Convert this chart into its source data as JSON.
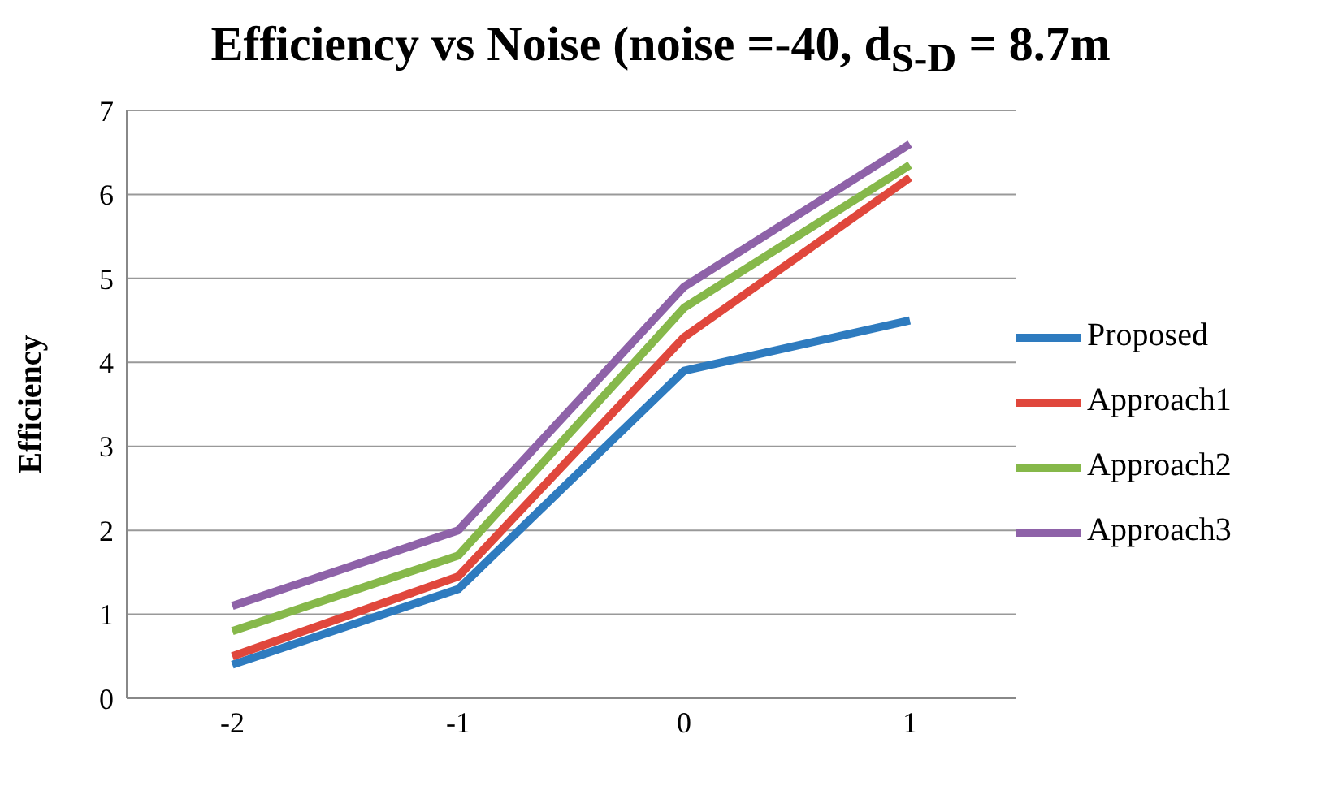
{
  "chart_data": {
    "type": "line",
    "title": "Efficiency vs Noise (noise =-40, d$_{S-D}$ = 8.7m",
    "ylabel": "Efficiency",
    "categories": [
      "-2",
      "-1",
      "0",
      "1"
    ],
    "series": [
      {
        "name": "Proposed",
        "color": "#2e7bbf",
        "values": [
          0.4,
          1.3,
          3.9,
          4.5
        ]
      },
      {
        "name": "Approach1",
        "color": "#e0473c",
        "values": [
          0.5,
          1.45,
          4.3,
          6.2
        ]
      },
      {
        "name": "Approach2",
        "color": "#86b84a",
        "values": [
          0.8,
          1.7,
          4.65,
          6.35
        ]
      },
      {
        "name": "Approach3",
        "color": "#8e62a8",
        "values": [
          1.1,
          2.0,
          4.9,
          6.6
        ]
      }
    ],
    "ylim": [
      0,
      7
    ],
    "yticks": [
      0,
      1,
      2,
      3,
      4,
      5,
      6,
      7
    ],
    "grid": "y",
    "legend": "right",
    "marker": "none",
    "line_style": "solid"
  }
}
